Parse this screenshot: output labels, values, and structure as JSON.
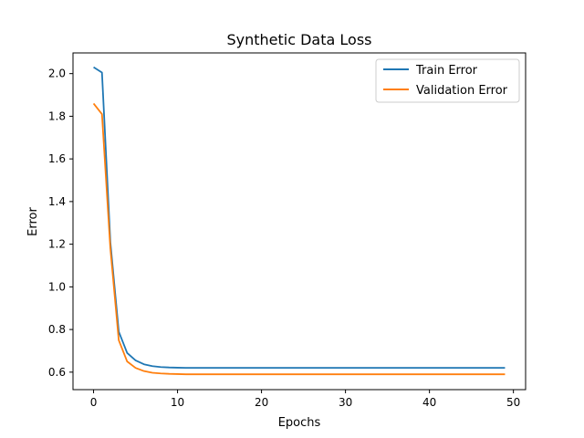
{
  "chart_data": {
    "type": "line",
    "title": "Synthetic Data Loss",
    "xlabel": "Epochs",
    "ylabel": "Error",
    "xlim": [
      -2.45,
      51.45
    ],
    "ylim": [
      0.518,
      2.097
    ],
    "xticks": [
      0,
      10,
      20,
      30,
      40,
      50
    ],
    "yticks": [
      0.6,
      0.8,
      1.0,
      1.2,
      1.4,
      1.6,
      1.8,
      2.0
    ],
    "grid": false,
    "legend_position": "top-right",
    "series": [
      {
        "name": "Train Error",
        "color": "#1f77b4",
        "x": [
          0,
          1,
          2,
          3,
          4,
          5,
          6,
          7,
          8,
          9,
          10,
          11,
          12,
          13,
          14,
          15,
          16,
          17,
          18,
          19,
          20,
          21,
          22,
          23,
          24,
          25,
          26,
          27,
          28,
          29,
          30,
          31,
          32,
          33,
          34,
          35,
          36,
          37,
          38,
          39,
          40,
          41,
          42,
          43,
          44,
          45,
          46,
          47,
          48,
          49
        ],
        "values": [
          2.03,
          2.005,
          1.21,
          0.79,
          0.69,
          0.655,
          0.637,
          0.628,
          0.624,
          0.622,
          0.621,
          0.62,
          0.62,
          0.62,
          0.62,
          0.62,
          0.62,
          0.62,
          0.62,
          0.62,
          0.62,
          0.62,
          0.62,
          0.62,
          0.62,
          0.62,
          0.62,
          0.62,
          0.62,
          0.62,
          0.62,
          0.62,
          0.62,
          0.62,
          0.62,
          0.62,
          0.62,
          0.62,
          0.62,
          0.62,
          0.62,
          0.62,
          0.62,
          0.62,
          0.62,
          0.62,
          0.62,
          0.62,
          0.62,
          0.62
        ]
      },
      {
        "name": "Validation Error",
        "color": "#ff7f0e",
        "x": [
          0,
          1,
          2,
          3,
          4,
          5,
          6,
          7,
          8,
          9,
          10,
          11,
          12,
          13,
          14,
          15,
          16,
          17,
          18,
          19,
          20,
          21,
          22,
          23,
          24,
          25,
          26,
          27,
          28,
          29,
          30,
          31,
          32,
          33,
          34,
          35,
          36,
          37,
          38,
          39,
          40,
          41,
          42,
          43,
          44,
          45,
          46,
          47,
          48,
          49
        ],
        "values": [
          1.86,
          1.81,
          1.18,
          0.75,
          0.65,
          0.62,
          0.605,
          0.597,
          0.594,
          0.592,
          0.591,
          0.59,
          0.59,
          0.59,
          0.59,
          0.59,
          0.59,
          0.59,
          0.59,
          0.59,
          0.59,
          0.59,
          0.59,
          0.59,
          0.59,
          0.59,
          0.59,
          0.59,
          0.59,
          0.59,
          0.59,
          0.59,
          0.59,
          0.59,
          0.59,
          0.59,
          0.59,
          0.59,
          0.59,
          0.59,
          0.59,
          0.59,
          0.59,
          0.59,
          0.59,
          0.59,
          0.59,
          0.59,
          0.59,
          0.59
        ]
      }
    ]
  }
}
